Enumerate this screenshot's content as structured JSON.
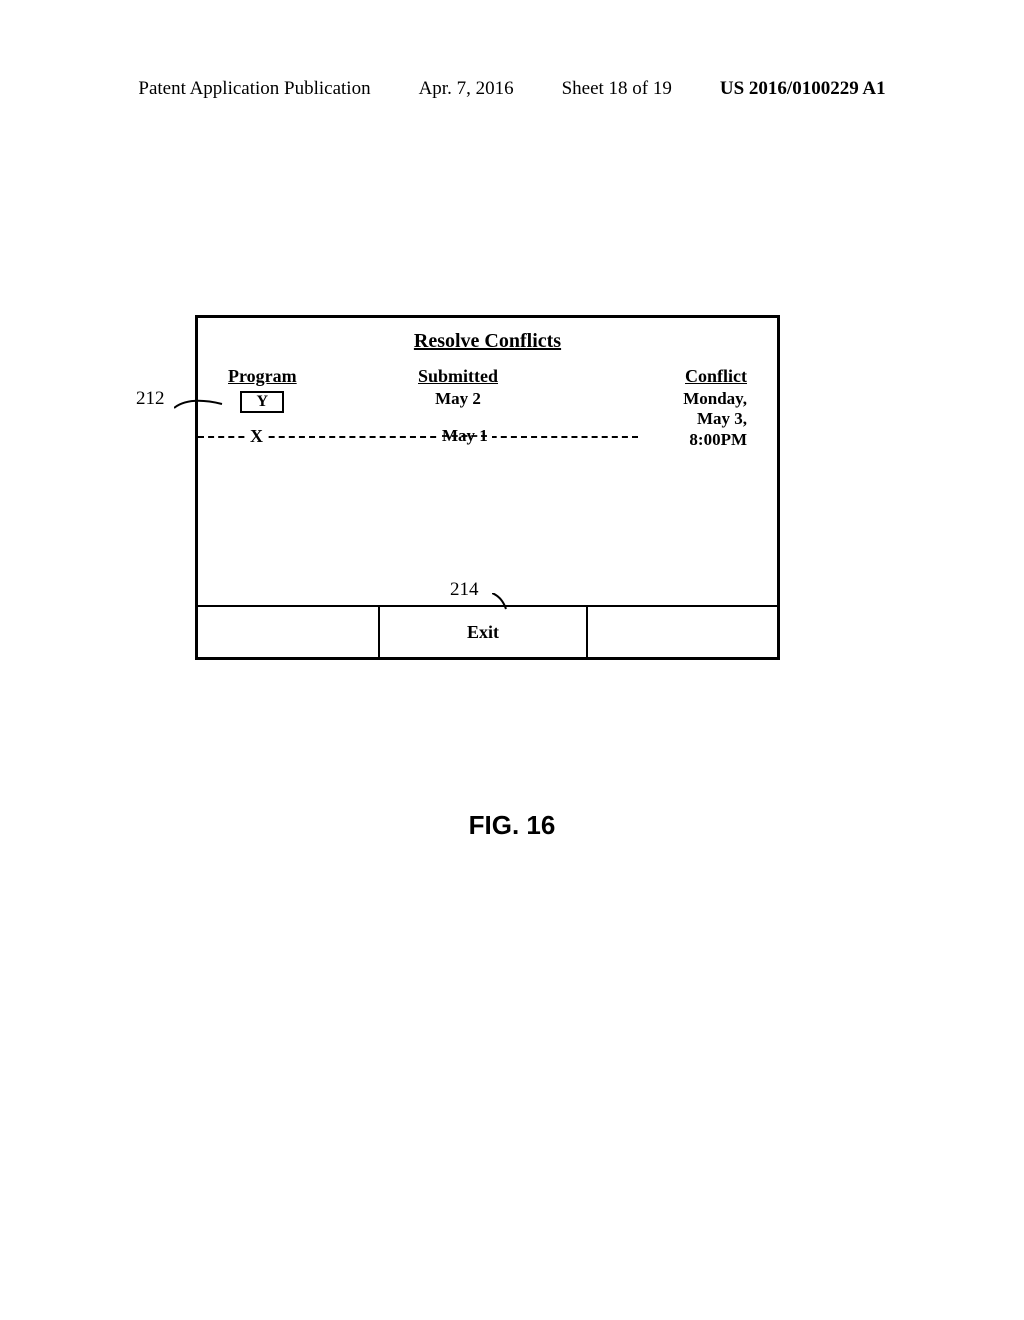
{
  "header": {
    "publication": "Patent Application Publication",
    "date": "Apr. 7, 2016",
    "sheet": "Sheet 18 of 19",
    "docnum": "US 2016/0100229 A1"
  },
  "dialog": {
    "title": "Resolve Conflicts",
    "columns": {
      "program": {
        "header": "Program",
        "selected": "Y",
        "crossed": "X"
      },
      "submitted": {
        "header": "Submitted",
        "value": "May 2",
        "crossed": "May 1"
      },
      "conflict": {
        "header": "Conflict",
        "value": "Monday,\nMay 3,\n8:00PM"
      }
    },
    "exit_label": "Exit"
  },
  "refs": {
    "r212": "212",
    "r214": "214"
  },
  "figure_caption": "FIG. 16",
  "colors": {
    "line": "#000000",
    "bg": "#ffffff"
  }
}
